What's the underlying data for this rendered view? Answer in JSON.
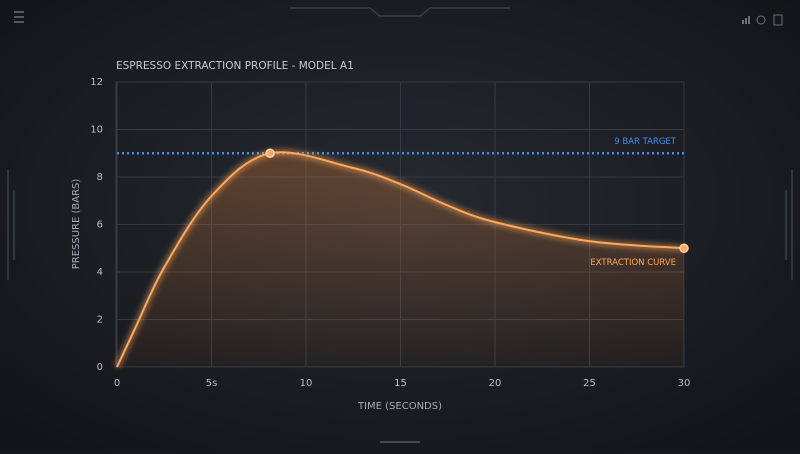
{
  "chart_data": {
    "type": "line",
    "title": "ESPRESSO EXTRACTION PROFILE - MODEL A1",
    "x_label": "TIME (SECONDS)",
    "y_label": "PRESSURE (BARS)",
    "x": [
      0,
      1,
      2.5,
      5,
      8.1,
      12.4,
      15,
      17.5,
      20,
      25,
      30
    ],
    "series": [
      {
        "name": "EXTRACTION CURVE",
        "color": "#ffa85a",
        "values": [
          0,
          1.7,
          4.2,
          7.2,
          9.0,
          8.4,
          7.7,
          6.8,
          6.1,
          5.3,
          5.0
        ]
      }
    ],
    "reference_lines": [
      {
        "value": 9,
        "label": "9 BAR TARGET",
        "color": "#3d8ff0"
      }
    ],
    "xlim": [
      0,
      30
    ],
    "xticks": [
      0,
      {
        "value": 5,
        "label": "5s"
      },
      10,
      15,
      20,
      25,
      30
    ],
    "ylim": [
      0,
      12
    ],
    "yticks": [
      0,
      2,
      4,
      6,
      8,
      10,
      12
    ],
    "grid": true
  }
}
